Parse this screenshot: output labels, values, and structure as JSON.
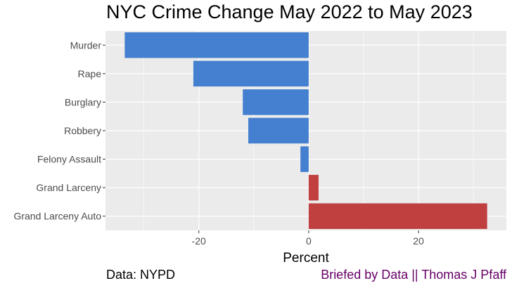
{
  "chart_data": {
    "type": "bar",
    "orientation": "horizontal",
    "title": "NYC Crime Change May 2022 to May 2023",
    "xlabel": "Percent",
    "ylabel": "",
    "categories": [
      "Murder",
      "Rape",
      "Burglary",
      "Robbery",
      "Felony Assault",
      "Grand Larceny",
      "Grand Larceny Auto"
    ],
    "values": [
      -33.5,
      -21,
      -12,
      -11,
      -1.5,
      1.8,
      32.5
    ],
    "xlim": [
      -37,
      36
    ],
    "xticks": [
      -20,
      0,
      20
    ],
    "xtick_labels": [
      "-20",
      "0",
      "20"
    ],
    "grid": true,
    "colors": {
      "negative": "#4480CF",
      "positive": "#C04040",
      "panel": "#EBEBEB",
      "grid": "#FFFFFF"
    }
  },
  "caption": {
    "source": "Data: NYPD",
    "credit": "Briefed by Data || Thomas J Pfaff",
    "credit_color": "#660066"
  }
}
